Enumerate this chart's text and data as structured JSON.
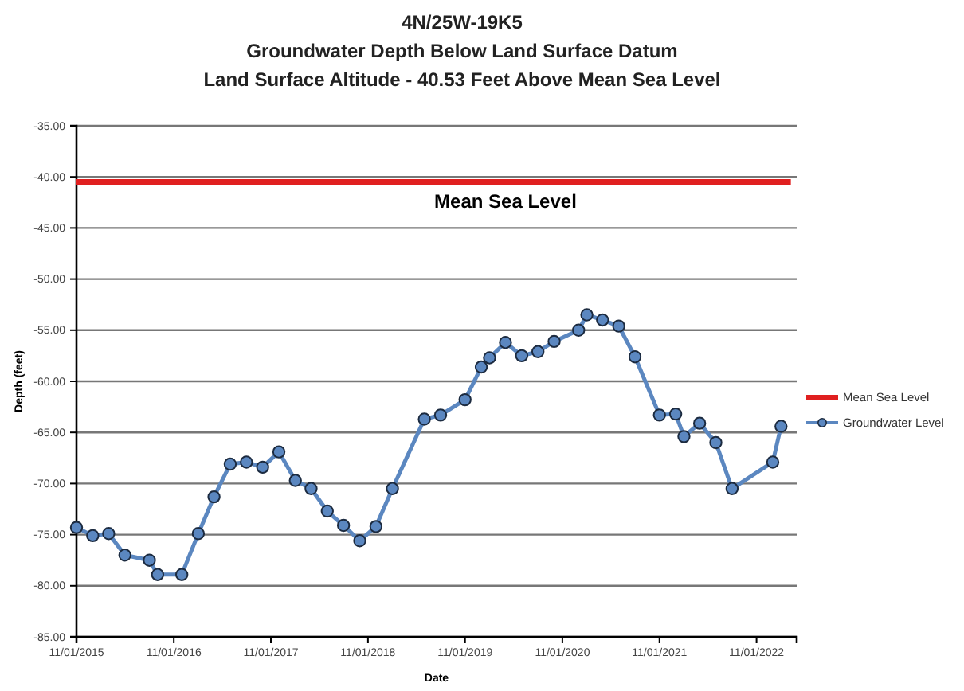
{
  "chart_data": {
    "type": "line",
    "title": "4N/25W-19K5",
    "subtitle": "Groundwater Depth Below Land Surface Datum\nLand Surface Altitude - 40.53 Feet Above Mean Sea Level",
    "xlabel": "Date",
    "ylabel": "Depth (feet)",
    "series": [
      {
        "name": "Mean Sea Level",
        "color": "#e02020",
        "marker": "none",
        "x": [
          "2015-11-01",
          "2023-03-10"
        ],
        "values": [
          -40.53,
          -40.53
        ]
      },
      {
        "name": "Groundwater Level",
        "color": "#5b87c0",
        "marker": "circle",
        "x": [
          "2015-11-01",
          "2016-01-01",
          "2016-03-01",
          "2016-05-01",
          "2016-08-01",
          "2016-09-01",
          "2016-12-01",
          "2017-02-01",
          "2017-04-01",
          "2017-06-01",
          "2017-08-01",
          "2017-10-01",
          "2017-12-01",
          "2018-02-01",
          "2018-04-01",
          "2018-06-01",
          "2018-08-01",
          "2018-10-01",
          "2018-12-01",
          "2019-02-01",
          "2019-06-01",
          "2019-08-01",
          "2019-11-01",
          "2020-01-01",
          "2020-02-01",
          "2020-04-01",
          "2020-06-01",
          "2020-08-01",
          "2020-10-01",
          "2021-01-01",
          "2021-02-01",
          "2021-04-01",
          "2021-06-01",
          "2021-08-01",
          "2021-11-01",
          "2022-01-01",
          "2022-02-01",
          "2022-04-01",
          "2022-06-01",
          "2022-08-01",
          "2023-01-01",
          "2023-02-01"
        ],
        "values": [
          -74.3,
          -75.1,
          -74.9,
          -77.0,
          -77.5,
          -78.9,
          -78.9,
          -74.9,
          -71.3,
          -68.1,
          -67.9,
          -68.4,
          -66.9,
          -69.7,
          -70.5,
          -72.7,
          -74.1,
          -75.6,
          -74.2,
          -70.5,
          -63.7,
          -63.3,
          -61.8,
          -58.6,
          -57.7,
          -56.2,
          -57.5,
          -57.1,
          -56.1,
          -55.0,
          -53.5,
          -54.0,
          -54.6,
          -57.6,
          -63.3,
          -63.2,
          -65.4,
          -64.1,
          -66.0,
          -70.5,
          -67.9,
          -64.4
        ]
      }
    ],
    "annotations": [
      {
        "text": "Mean Sea Level",
        "x": "2020-04-01",
        "y": -40.53
      }
    ],
    "xlim": [
      "2015-11-01",
      "2023-04-01"
    ],
    "xticks": [
      {
        "value": "2015-11-01",
        "label": "11/01/2015"
      },
      {
        "value": "2016-11-01",
        "label": "11/01/2016"
      },
      {
        "value": "2017-11-01",
        "label": "11/01/2017"
      },
      {
        "value": "2018-11-01",
        "label": "11/01/2018"
      },
      {
        "value": "2019-11-01",
        "label": "11/01/2019"
      },
      {
        "value": "2020-11-01",
        "label": "11/01/2020"
      },
      {
        "value": "2021-11-01",
        "label": "11/01/2021"
      },
      {
        "value": "2022-11-01",
        "label": "11/01/2022"
      }
    ],
    "ylim": [
      -85,
      -35
    ],
    "yticks": [
      {
        "value": -85,
        "label": "-85.00"
      },
      {
        "value": -80,
        "label": "-80.00"
      },
      {
        "value": -75,
        "label": "-75.00"
      },
      {
        "value": -70,
        "label": "-70.00"
      },
      {
        "value": -65,
        "label": "-65.00"
      },
      {
        "value": -60,
        "label": "-60.00"
      },
      {
        "value": -55,
        "label": "-55.00"
      },
      {
        "value": -50,
        "label": "-50.00"
      },
      {
        "value": -45,
        "label": "-45.00"
      },
      {
        "value": -40,
        "label": "-40.00"
      },
      {
        "value": -35,
        "label": "-35.00"
      }
    ],
    "grid": "y",
    "legend": "right",
    "line_style": "solid"
  }
}
